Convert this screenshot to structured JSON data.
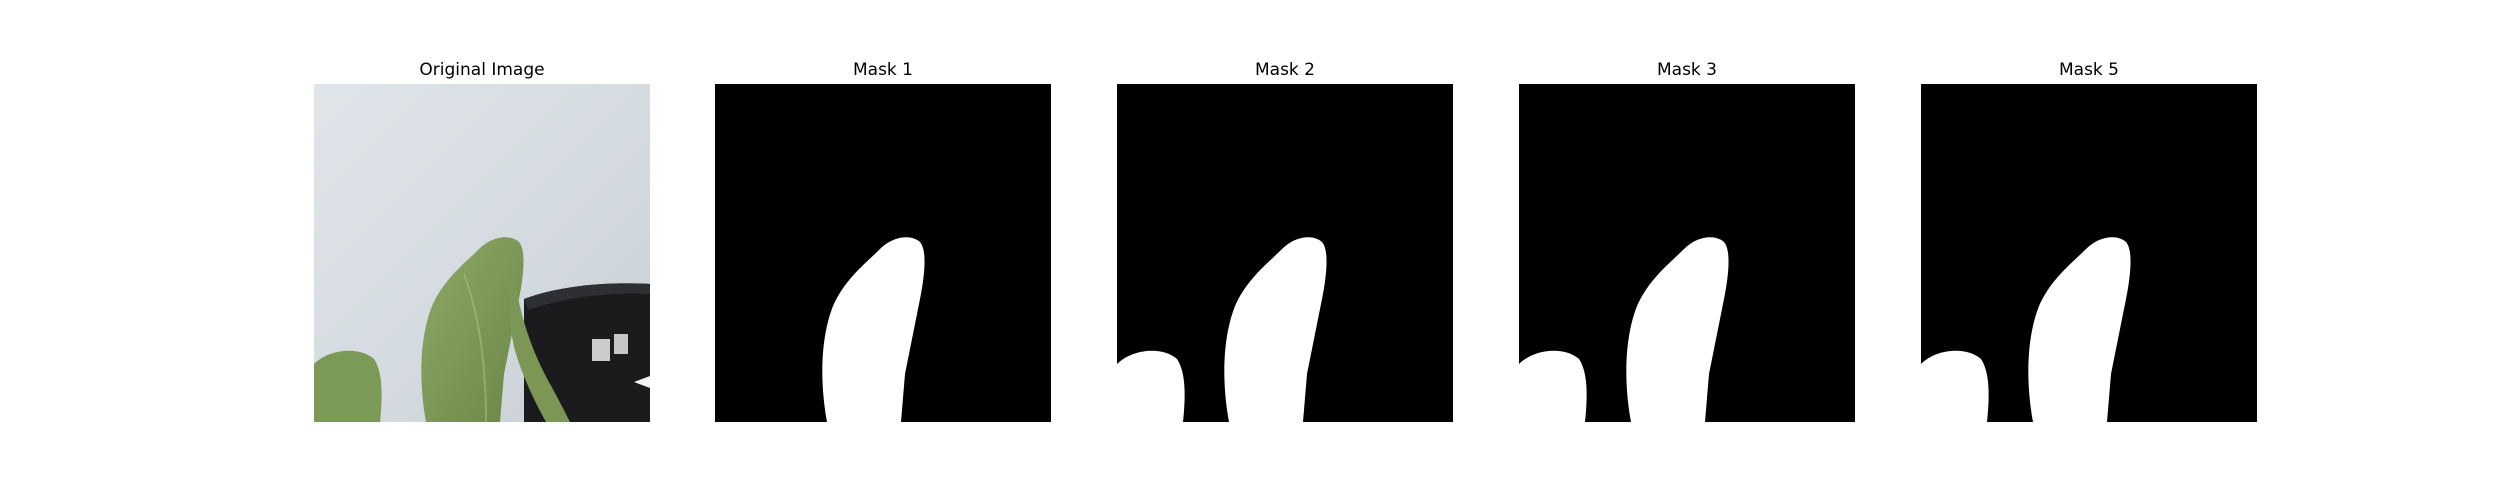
{
  "panels": [
    {
      "title": "Original Image"
    },
    {
      "title": "Mask 1"
    },
    {
      "title": "Mask 2"
    },
    {
      "title": "Mask 3"
    },
    {
      "title": "Mask 5"
    }
  ],
  "colors": {
    "background_wall": "#d7dee3",
    "leaf_green": "#7f9a5c",
    "leaf_dark": "#5e7a40",
    "pot_black": "#1b1b1d",
    "mask_background": "#000000",
    "mask_foreground": "#ffffff"
  }
}
